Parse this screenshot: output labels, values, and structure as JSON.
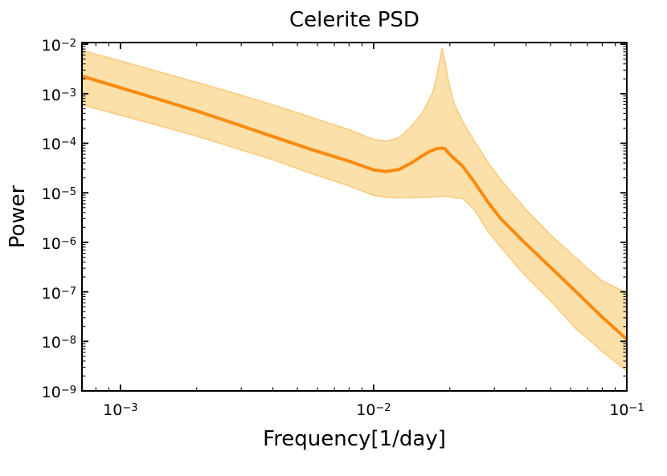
{
  "figure": {
    "title": "Celerite PSD",
    "xlabel": "Frequency[1/day]",
    "ylabel": "Power"
  },
  "colors": {
    "line": "#fb8a0e",
    "band_fill": "#fce0a9",
    "band_edge": "#facb80",
    "axis": "#000000",
    "text": "#000000",
    "background": "#ffffff"
  },
  "chart_data": {
    "type": "line",
    "title": "Celerite PSD",
    "xlabel": "Frequency[1/day]",
    "ylabel": "Power",
    "xscale": "log",
    "yscale": "log",
    "xlim": [
      0.000705,
      0.1
    ],
    "ylim": [
      1e-09,
      0.0108
    ],
    "x_ticks": [
      0.001,
      0.01,
      0.1
    ],
    "y_ticks": [
      0.01,
      0.001,
      0.0001,
      1e-05,
      1e-06,
      1e-07,
      1e-08,
      1e-09
    ],
    "grid": false,
    "legend": false,
    "frequency": [
      0.00071,
      0.001,
      0.00141,
      0.002,
      0.00282,
      0.00398,
      0.00562,
      0.00794,
      0.01,
      0.0112,
      0.0126,
      0.0141,
      0.0155,
      0.0166,
      0.0172,
      0.0178,
      0.018,
      0.0182,
      0.0184,
      0.0186,
      0.0188,
      0.0191,
      0.0195,
      0.0197,
      0.0204,
      0.0209,
      0.0224,
      0.0251,
      0.0282,
      0.0316,
      0.0355,
      0.0398,
      0.0501,
      0.0631,
      0.0794,
      0.1
    ],
    "series": [
      {
        "name": "psd_median",
        "role": "line",
        "values": [
          0.00224,
          0.00132,
          0.00078,
          0.00045,
          0.00025,
          0.000138,
          7.6e-05,
          4.4e-05,
          2.9e-05,
          2.7e-05,
          2.95e-05,
          4e-05,
          5.5e-05,
          6.8e-05,
          7.3e-05,
          7.8e-05,
          7.85e-05,
          7.9e-05,
          8e-05,
          8e-05,
          7.9e-05,
          7.8e-05,
          6.9e-05,
          6.5e-05,
          5.4e-05,
          4.8e-05,
          3.5e-05,
          1.6e-05,
          6.6e-06,
          3.1e-06,
          1.7e-06,
          9.5e-07,
          3.1e-07,
          1e-07,
          3.2e-08,
          1.1e-08
        ]
      },
      {
        "name": "uncertainty_upper",
        "role": "band-upper",
        "values": [
          0.0074,
          0.0046,
          0.0028,
          0.0017,
          0.00102,
          0.0006,
          0.00034,
          0.00019,
          0.00012,
          0.00011,
          0.000129,
          0.00022,
          0.0004,
          0.00076,
          0.00112,
          0.0024,
          0.0032,
          0.0042,
          0.0056,
          0.0083,
          0.0066,
          0.0047,
          0.0026,
          0.0019,
          0.00089,
          0.0006,
          0.00028,
          0.000107,
          4.2e-05,
          1.9e-05,
          9.3e-06,
          4.7e-06,
          1.4e-06,
          4.8e-07,
          1.7e-07,
          9.5e-08
        ]
      },
      {
        "name": "uncertainty_lower",
        "role": "band-lower",
        "values": [
          0.00059,
          0.00037,
          0.00023,
          0.00014,
          8.1e-05,
          4.7e-05,
          2.5e-05,
          1.4e-05,
          8.9e-06,
          8.1e-06,
          7.9e-06,
          7.9e-06,
          8.1e-06,
          8.1e-06,
          8.3e-06,
          8.3e-06,
          8.4e-06,
          8.5e-06,
          8.5e-06,
          8.5e-06,
          8.5e-06,
          8.5e-06,
          8.4e-06,
          8.3e-06,
          8.1e-06,
          7.9e-06,
          7.8e-06,
          4.5e-06,
          1.7e-06,
          8.3e-07,
          4.1e-07,
          2.1e-07,
          6.5e-08,
          1.8e-08,
          6.5e-09,
          2.5e-09
        ]
      }
    ]
  }
}
